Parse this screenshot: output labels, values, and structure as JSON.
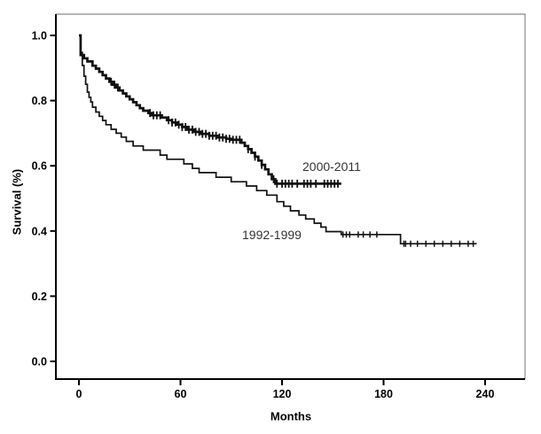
{
  "chart_data": {
    "type": "line",
    "chart_style": "kaplan-meier-survival-step-plot",
    "title": "",
    "xlabel": "Months",
    "ylabel": "Survival (%)",
    "x_ticks": [
      "0",
      "60",
      "120",
      "180",
      "240"
    ],
    "x_tick_values": [
      0,
      60,
      120,
      180,
      240
    ],
    "y_ticks": [
      "0.0",
      "0.2",
      "0.4",
      "0.6",
      "0.8",
      "1.0"
    ],
    "y_tick_values": [
      0,
      0.2,
      0.4,
      0.6,
      0.8,
      1.0
    ],
    "x_axis_range_months": [
      -14,
      264
    ],
    "y_axis_range": [
      -0.05,
      1.06
    ],
    "grid": false,
    "legend_position": "inline-annotations-on-plot",
    "curve_color": "#111111",
    "background_color": "#ffffff",
    "series": [
      {
        "name": "2000-2011",
        "color": "#111111",
        "steps": [
          [
            0,
            1.0
          ],
          [
            1,
            0.94
          ],
          [
            3,
            0.93
          ],
          [
            5,
            0.92
          ],
          [
            8,
            0.907
          ],
          [
            10,
            0.898
          ],
          [
            12,
            0.888
          ],
          [
            14,
            0.878
          ],
          [
            16,
            0.868
          ],
          [
            18,
            0.858
          ],
          [
            20,
            0.849
          ],
          [
            22,
            0.84
          ],
          [
            24,
            0.831
          ],
          [
            26,
            0.822
          ],
          [
            28,
            0.813
          ],
          [
            30,
            0.804
          ],
          [
            32,
            0.795
          ],
          [
            34,
            0.786
          ],
          [
            36,
            0.777
          ],
          [
            38,
            0.769
          ],
          [
            41,
            0.762
          ],
          [
            43,
            0.755
          ],
          [
            49,
            0.748
          ],
          [
            52,
            0.74
          ],
          [
            55,
            0.733
          ],
          [
            58,
            0.726
          ],
          [
            61,
            0.719
          ],
          [
            64,
            0.711
          ],
          [
            68,
            0.704
          ],
          [
            72,
            0.698
          ],
          [
            77,
            0.692
          ],
          [
            82,
            0.687
          ],
          [
            87,
            0.683
          ],
          [
            90,
            0.68
          ],
          [
            96,
            0.671
          ],
          [
            98,
            0.661
          ],
          [
            100,
            0.651
          ],
          [
            102,
            0.64
          ],
          [
            104,
            0.628
          ],
          [
            106,
            0.616
          ],
          [
            108,
            0.603
          ],
          [
            110,
            0.589
          ],
          [
            112,
            0.574
          ],
          [
            114,
            0.559
          ],
          [
            116,
            0.545
          ],
          [
            155,
            0.545
          ]
        ],
        "censor_months": [
          19,
          21,
          23,
          42,
          44,
          46,
          48,
          53,
          55,
          57,
          59,
          61,
          63,
          65,
          67,
          69,
          71,
          73,
          75,
          77,
          79,
          81,
          83,
          85,
          87,
          89,
          91,
          93,
          95,
          100,
          104,
          108,
          115,
          117,
          120,
          122,
          124,
          126,
          129,
          133,
          135,
          137,
          140,
          145,
          147,
          149,
          151,
          153
        ],
        "end_month": 155,
        "final_survival": 0.545
      },
      {
        "name": "1992-1999",
        "color": "#111111",
        "steps": [
          [
            0,
            1.0
          ],
          [
            1,
            0.948
          ],
          [
            2,
            0.908
          ],
          [
            3,
            0.875
          ],
          [
            4,
            0.85
          ],
          [
            5,
            0.826
          ],
          [
            6,
            0.81
          ],
          [
            7,
            0.796
          ],
          [
            8,
            0.78
          ],
          [
            10,
            0.765
          ],
          [
            12,
            0.752
          ],
          [
            14,
            0.739
          ],
          [
            16,
            0.726
          ],
          [
            19,
            0.712
          ],
          [
            22,
            0.7
          ],
          [
            25,
            0.688
          ],
          [
            28,
            0.675
          ],
          [
            32,
            0.661
          ],
          [
            38,
            0.648
          ],
          [
            48,
            0.633
          ],
          [
            52,
            0.62
          ],
          [
            62,
            0.606
          ],
          [
            67,
            0.592
          ],
          [
            71,
            0.579
          ],
          [
            81,
            0.565
          ],
          [
            90,
            0.551
          ],
          [
            99,
            0.538
          ],
          [
            105,
            0.524
          ],
          [
            111,
            0.51
          ],
          [
            117,
            0.49
          ],
          [
            121,
            0.476
          ],
          [
            125,
            0.462
          ],
          [
            130,
            0.449
          ],
          [
            134,
            0.437
          ],
          [
            139,
            0.424
          ],
          [
            143,
            0.412
          ],
          [
            146,
            0.398
          ],
          [
            155,
            0.389
          ],
          [
            190,
            0.361
          ],
          [
            235,
            0.361
          ]
        ],
        "censor_months": [
          156,
          158,
          160,
          165,
          168,
          172,
          176,
          192,
          193,
          196,
          200,
          205,
          210,
          215,
          220,
          225,
          230,
          233
        ],
        "end_month": 235,
        "final_survival": 0.361
      }
    ]
  }
}
